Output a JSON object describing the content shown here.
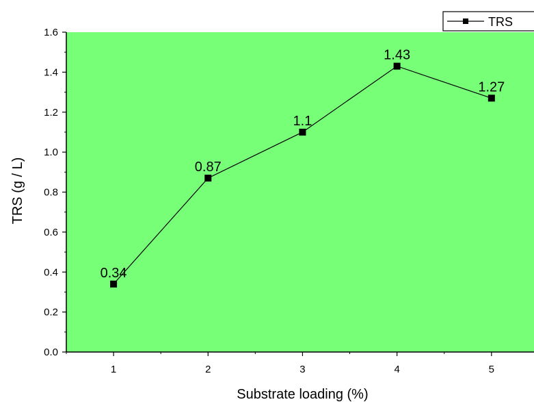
{
  "chart_data": {
    "type": "line",
    "title": "",
    "xlabel": "Substrate loading (%)",
    "ylabel": "TRS (g / L)",
    "x": [
      1,
      2,
      3,
      4,
      5
    ],
    "series": [
      {
        "name": "TRS",
        "values": [
          0.34,
          0.87,
          1.1,
          1.43,
          1.27
        ],
        "data_labels": [
          "0.34",
          "0.87",
          "1.1",
          "1.43",
          "1.27"
        ],
        "marker": "square",
        "color": "#000000"
      }
    ],
    "xlim": [
      0.5,
      5.45
    ],
    "ylim": [
      0.0,
      1.6
    ],
    "x_ticks": [
      "1",
      "2",
      "3",
      "4",
      "5"
    ],
    "y_ticks": [
      "0.0",
      "0.2",
      "0.4",
      "0.6",
      "0.8",
      "1.0",
      "1.2",
      "1.4",
      "1.6"
    ],
    "grid": false,
    "legend_position": "top-right",
    "plot_background": "#77ff77",
    "page_background": "#ffffff"
  }
}
